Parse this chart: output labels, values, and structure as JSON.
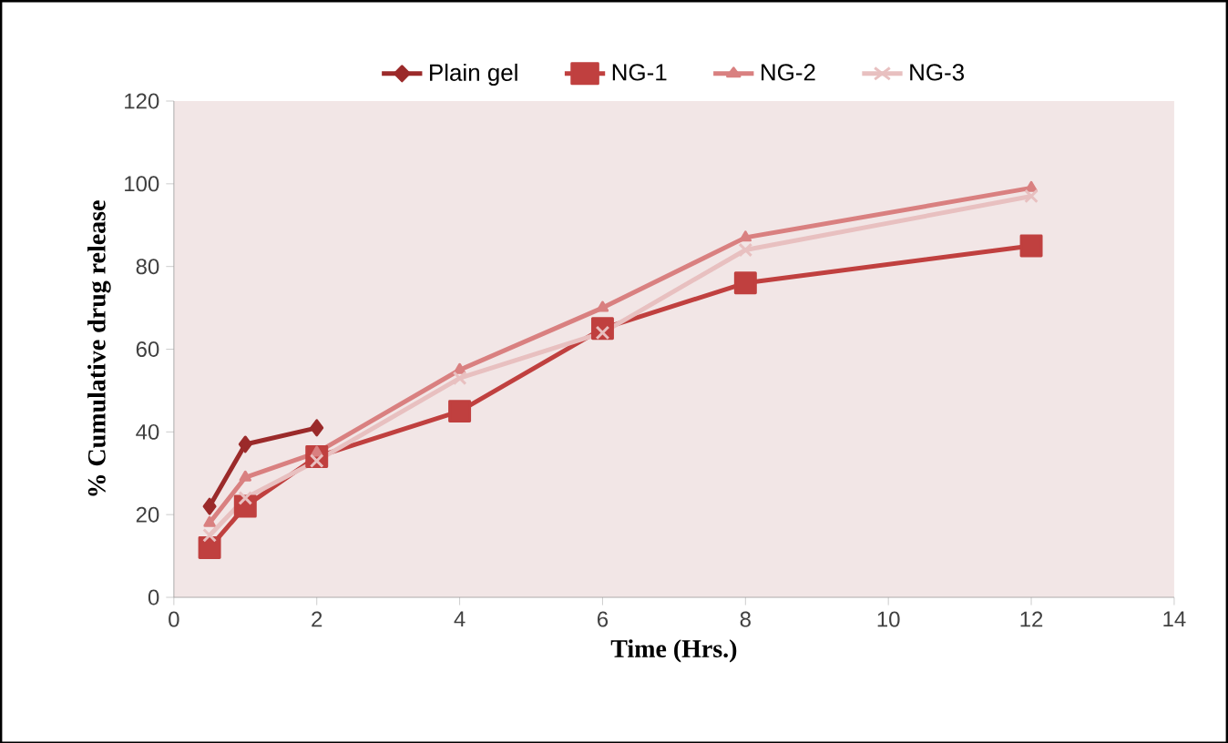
{
  "chart_data": {
    "type": "line",
    "xlabel": "Time (Hrs.)",
    "ylabel": "% Cumulative drug release",
    "xlim": [
      0,
      14
    ],
    "xticks": [
      0,
      2,
      4,
      6,
      8,
      10,
      12,
      14
    ],
    "ylim": [
      0,
      120
    ],
    "yticks": [
      0,
      20,
      40,
      60,
      80,
      100,
      120
    ],
    "grid": false,
    "legend": "top",
    "line_style": "solid",
    "series": [
      {
        "name": "Plain gel",
        "color": "#9b2a2a",
        "marker": "diamond",
        "x": [
          0.5,
          1,
          2
        ],
        "values": [
          22,
          37,
          41
        ]
      },
      {
        "name": "NG-1",
        "color": "#c0403f",
        "marker": "square",
        "x": [
          0.5,
          1,
          2,
          4,
          6,
          8,
          12
        ],
        "values": [
          12,
          22,
          34,
          45,
          65,
          76,
          85
        ]
      },
      {
        "name": "NG-2",
        "color": "#d98080",
        "marker": "triangle",
        "x": [
          0.5,
          1,
          2,
          4,
          6,
          8,
          12
        ],
        "values": [
          18,
          29,
          35,
          55,
          70,
          87,
          99
        ]
      },
      {
        "name": "NG-3",
        "color": "#e8c0c0",
        "marker": "cross",
        "x": [
          0.5,
          1,
          2,
          4,
          6,
          8,
          12
        ],
        "values": [
          15,
          24,
          33,
          53,
          64,
          84,
          97
        ]
      }
    ]
  }
}
